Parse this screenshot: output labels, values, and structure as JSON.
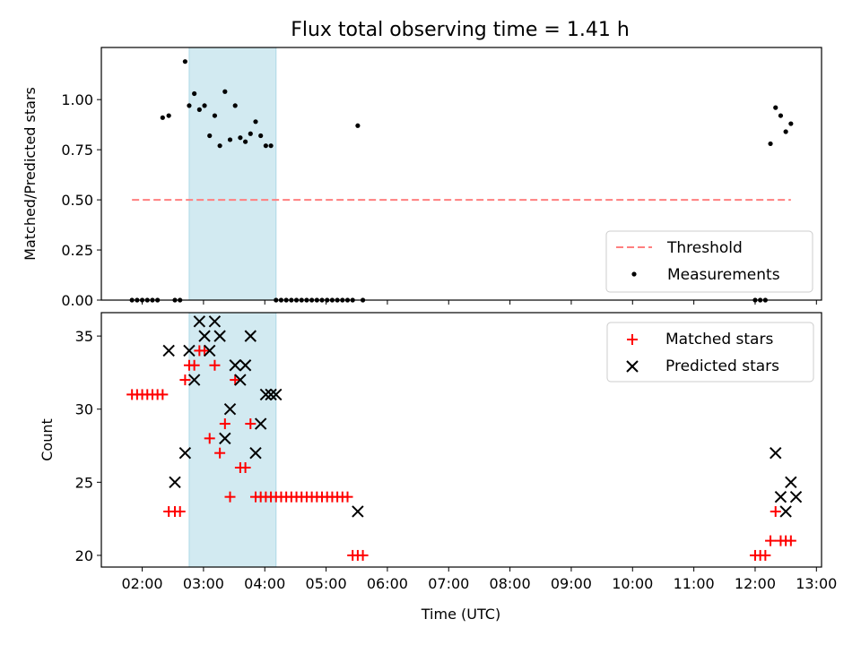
{
  "chart_data": [
    {
      "type": "scatter",
      "title": "Flux total observing time = 1.41 h",
      "xlabel": "",
      "ylabel": "Matched/Predicted stars",
      "xlim": [
        "01:20",
        "13:05"
      ],
      "ylim": [
        0,
        1.26
      ],
      "yticks": [
        "0.00",
        "0.25",
        "0.50",
        "0.75",
        "1.00"
      ],
      "shaded_interval": [
        "02:46",
        "04:11"
      ],
      "legend_position": "lower-right",
      "series": [
        {
          "name": "Threshold",
          "style": "dashed-line",
          "color": "#ff7f7f",
          "x": [
            "01:50",
            "12:35"
          ],
          "y": [
            0.5,
            0.5
          ]
        },
        {
          "name": "Measurements",
          "style": "dot",
          "color": "#000000",
          "x": [
            "01:50",
            "01:55",
            "02:00",
            "02:05",
            "02:10",
            "02:15",
            "02:20",
            "02:26",
            "02:32",
            "02:37",
            "02:42",
            "02:46",
            "02:51",
            "02:56",
            "03:01",
            "03:06",
            "03:11",
            "03:16",
            "03:21",
            "03:26",
            "03:31",
            "03:36",
            "03:41",
            "03:46",
            "03:51",
            "03:56",
            "04:01",
            "04:06",
            "04:11",
            "04:16",
            "04:21",
            "04:26",
            "04:31",
            "04:36",
            "04:41",
            "04:46",
            "04:51",
            "04:56",
            "05:01",
            "05:06",
            "05:11",
            "05:16",
            "05:21",
            "05:26",
            "05:31",
            "05:36",
            "12:00",
            "12:05",
            "12:10",
            "12:15",
            "12:20",
            "12:25",
            "12:30",
            "12:35"
          ],
          "y": [
            0,
            0,
            0,
            0,
            0,
            0,
            0.91,
            0.92,
            0,
            0,
            1.19,
            0.97,
            1.03,
            0.95,
            0.97,
            0.82,
            0.92,
            0.77,
            1.04,
            0.8,
            0.97,
            0.81,
            0.79,
            0.83,
            0.89,
            0.82,
            0.77,
            0.77,
            0,
            0,
            0,
            0,
            0,
            0,
            0,
            0,
            0,
            0,
            0,
            0,
            0,
            0,
            0,
            0,
            0.87,
            0,
            0,
            0,
            0,
            0.78,
            0.96,
            0.92,
            0.84,
            0.88
          ]
        }
      ],
      "xticks": []
    },
    {
      "type": "scatter",
      "title": "",
      "xlabel": "Time (UTC)",
      "ylabel": "Count",
      "xlim": [
        "01:20",
        "13:05"
      ],
      "ylim": [
        19.2,
        36.6
      ],
      "yticks": [
        "20",
        "25",
        "30",
        "35"
      ],
      "xticks": [
        "02:00",
        "03:00",
        "04:00",
        "05:00",
        "06:00",
        "07:00",
        "08:00",
        "09:00",
        "10:00",
        "11:00",
        "12:00",
        "13:00"
      ],
      "shaded_interval": [
        "02:46",
        "04:11"
      ],
      "legend_position": "upper-right",
      "series": [
        {
          "name": "Matched stars",
          "style": "plus",
          "color": "#ff0000",
          "x": [
            "01:50",
            "01:55",
            "02:00",
            "02:05",
            "02:10",
            "02:15",
            "02:20",
            "02:26",
            "02:32",
            "02:37",
            "02:42",
            "02:46",
            "02:51",
            "02:56",
            "03:01",
            "03:06",
            "03:11",
            "03:16",
            "03:21",
            "03:26",
            "03:31",
            "03:36",
            "03:41",
            "03:46",
            "03:51",
            "03:56",
            "04:01",
            "04:06",
            "04:11",
            "04:16",
            "04:21",
            "04:26",
            "04:31",
            "04:36",
            "04:41",
            "04:46",
            "04:51",
            "04:56",
            "05:01",
            "05:06",
            "05:11",
            "05:16",
            "05:21",
            "05:26",
            "05:31",
            "05:36",
            "12:00",
            "12:05",
            "12:10",
            "12:15",
            "12:20",
            "12:25",
            "12:30",
            "12:35"
          ],
          "y": [
            31,
            31,
            31,
            31,
            31,
            31,
            31,
            23,
            23,
            23,
            32,
            33,
            33,
            34,
            34,
            28,
            33,
            27,
            29,
            24,
            32,
            26,
            26,
            29,
            24,
            24,
            24,
            24,
            24,
            24,
            24,
            24,
            24,
            24,
            24,
            24,
            24,
            24,
            24,
            24,
            24,
            24,
            24,
            20,
            20,
            20,
            20,
            20,
            20,
            21,
            23,
            21,
            21,
            21
          ]
        },
        {
          "name": "Predicted stars",
          "style": "x",
          "color": "#000000",
          "x": [
            "02:26",
            "02:32",
            "02:42",
            "02:46",
            "02:51",
            "02:56",
            "03:01",
            "03:06",
            "03:11",
            "03:16",
            "03:21",
            "03:26",
            "03:31",
            "03:36",
            "03:41",
            "03:46",
            "03:51",
            "03:56",
            "04:01",
            "04:06",
            "04:11",
            "05:31",
            "12:20",
            "12:25",
            "12:30",
            "12:35",
            "12:40"
          ],
          "y": [
            34,
            25,
            27,
            34,
            32,
            36,
            35,
            34,
            36,
            35,
            28,
            30,
            33,
            32,
            33,
            35,
            27,
            29,
            31,
            31,
            31,
            23,
            27,
            24,
            23,
            25,
            24
          ]
        }
      ]
    }
  ]
}
